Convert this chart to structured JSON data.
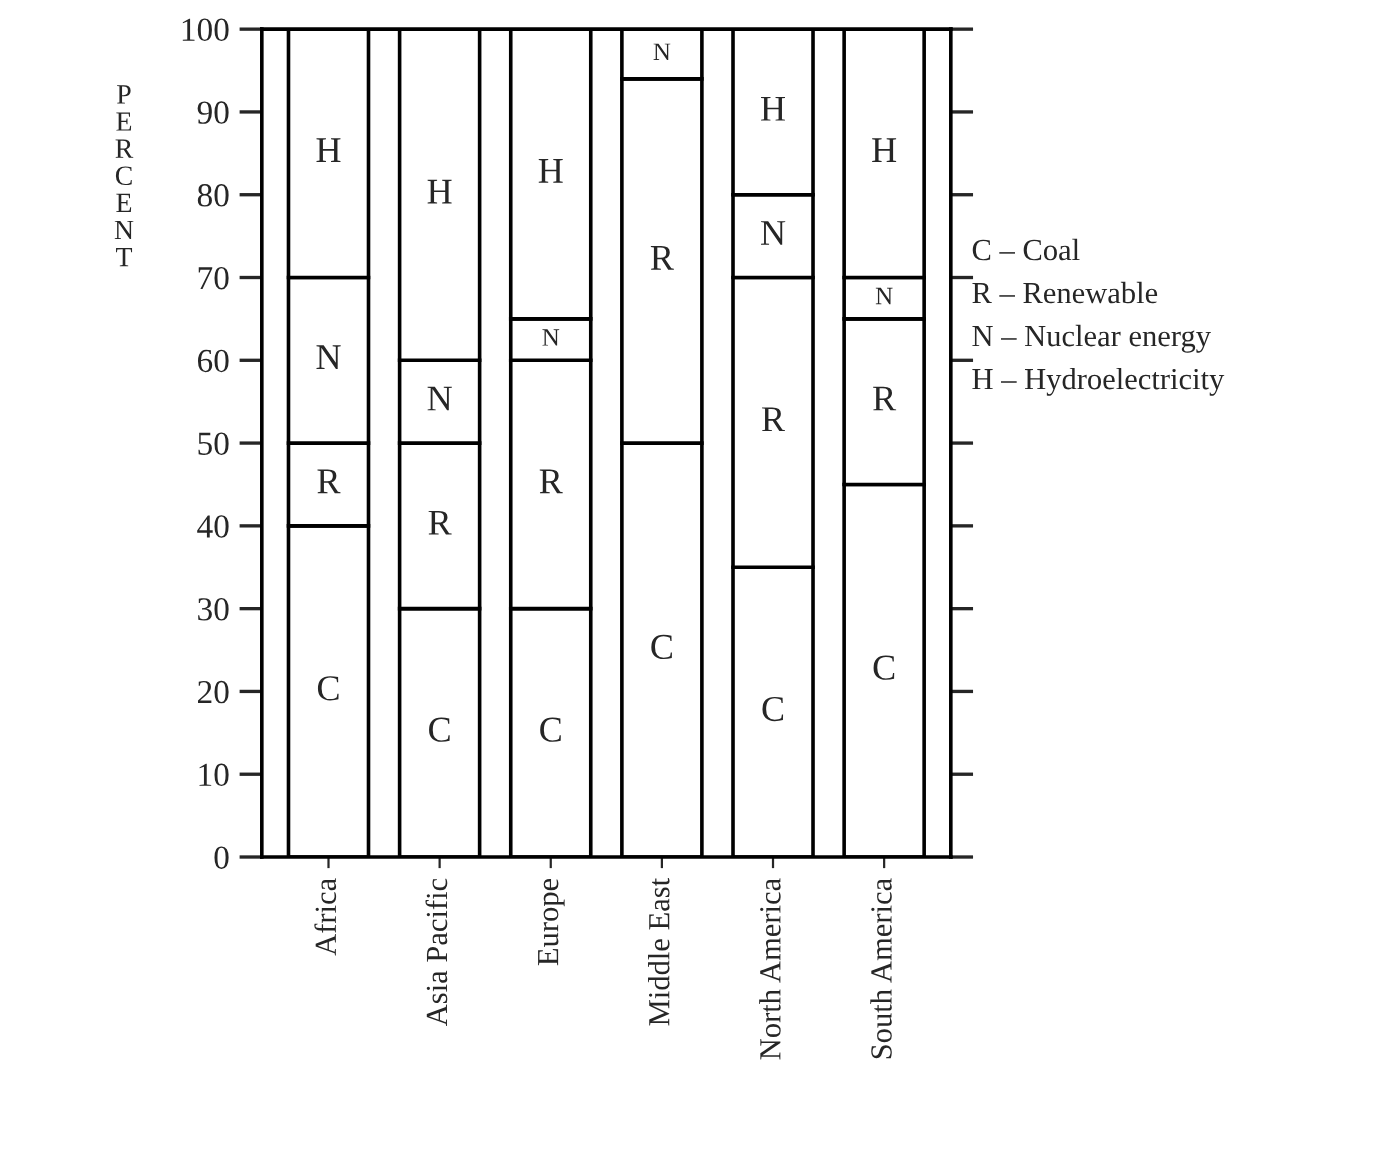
{
  "chart_data": {
    "type": "bar",
    "stacked": true,
    "ylabel": "PERCENT",
    "categories": [
      "Africa",
      "Asia Pacific",
      "Europe",
      "Middle East",
      "North America",
      "South America"
    ],
    "series": [
      {
        "color": "#ffffff",
        "values": [
          40,
          30,
          30,
          50,
          35,
          45
        ],
        "value_labels": [
          "C",
          "C",
          "C",
          "C",
          "C",
          "C"
        ]
      },
      {
        "color": "#ffffff",
        "values": [
          10,
          20,
          30,
          44,
          35,
          20
        ],
        "value_labels": [
          "R",
          "R",
          "R",
          "R",
          "R",
          "R"
        ]
      },
      {
        "color": "#ffffff",
        "values": [
          20,
          10,
          5,
          6,
          10,
          5
        ],
        "value_labels": [
          "N",
          "N",
          "N",
          "N",
          "N",
          "N"
        ]
      },
      {
        "color": "#ffffff",
        "values": [
          30,
          40,
          35,
          null,
          20,
          30
        ],
        "value_labels": [
          "H",
          "H",
          "H",
          null,
          "H",
          "H"
        ]
      }
    ],
    "annotations": [
      "C – Coal",
      "R – Renewable",
      "N – Nuclear energy",
      "H – Hydroelectricity"
    ],
    "ylim": [
      0,
      100
    ],
    "yticks": [
      0,
      10,
      20,
      30,
      40,
      50,
      60,
      70,
      80,
      90,
      100
    ],
    "grid": false
  }
}
